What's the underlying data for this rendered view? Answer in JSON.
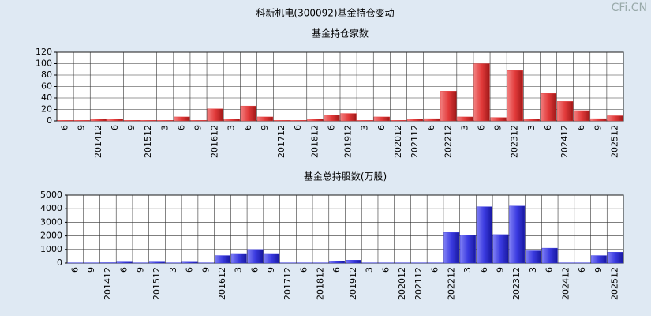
{
  "title": "科新机电(300092)基金持仓变动",
  "watermark": "CFi.CN",
  "chart_data": [
    {
      "type": "bar",
      "title": "基金持仓家数",
      "color": "#e23a3a",
      "categories": [
        "6",
        "9",
        "201412",
        "6",
        "9",
        "201512",
        "3",
        "6",
        "9",
        "201612",
        "3",
        "6",
        "9",
        "201712",
        "6",
        "201812",
        "6",
        "201912",
        "3",
        "6",
        "202012",
        "202112",
        "6",
        "202212",
        "3",
        "6",
        "9",
        "202312",
        "3",
        "6",
        "202412",
        "6",
        "9",
        "202512"
      ],
      "values": [
        1,
        1,
        3,
        3,
        1,
        1,
        1,
        7,
        1,
        21,
        3,
        26,
        7,
        1,
        1,
        3,
        10,
        13,
        1,
        7,
        1,
        3,
        4,
        52,
        7,
        100,
        6,
        88,
        3,
        48,
        34,
        18,
        4,
        9
      ],
      "ylim": [
        0,
        120
      ],
      "yticks": [
        0,
        20,
        40,
        60,
        80,
        100,
        120
      ],
      "grid": true
    },
    {
      "type": "bar",
      "title": "基金总持股数(万股)",
      "color": "#3a3ae0",
      "categories": [
        "6",
        "9",
        "201412",
        "6",
        "9",
        "201512",
        "3",
        "6",
        "9",
        "201612",
        "3",
        "6",
        "9",
        "201712",
        "6",
        "201812",
        "6",
        "201912",
        "3",
        "6",
        "202012",
        "202112",
        "6",
        "202212",
        "3",
        "6",
        "9",
        "202312",
        "3",
        "6",
        "202412",
        "6",
        "9",
        "202512"
      ],
      "values": [
        20,
        20,
        30,
        80,
        20,
        80,
        20,
        70,
        20,
        550,
        700,
        1000,
        700,
        20,
        20,
        20,
        150,
        220,
        20,
        20,
        20,
        20,
        20,
        2250,
        2050,
        4150,
        2100,
        4200,
        900,
        1100,
        20,
        20,
        550,
        800
      ],
      "ylim": [
        0,
        5000
      ],
      "yticks": [
        0,
        1000,
        2000,
        3000,
        4000,
        5000
      ],
      "grid": true
    }
  ]
}
